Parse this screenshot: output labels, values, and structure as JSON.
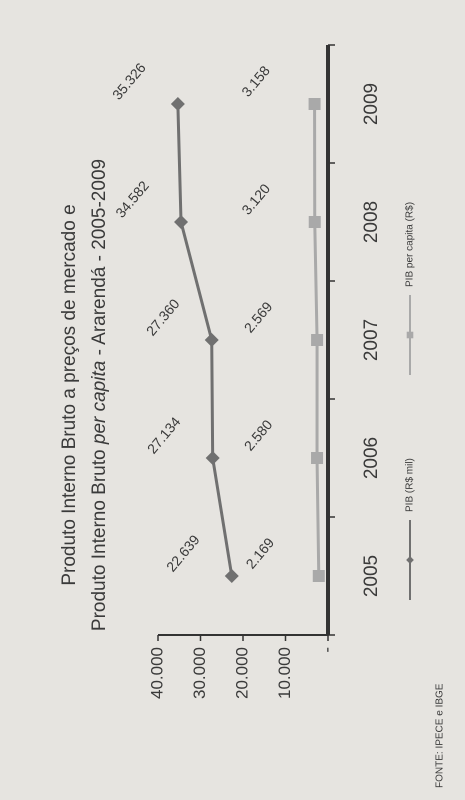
{
  "chart_data": {
    "type": "line",
    "title": "Produto Interno Bruto a preços de mercado e",
    "subtitle_parts": [
      "Produto Interno Bruto ",
      "per capita",
      " - Ararendá - 2005-2009"
    ],
    "source": "FONTE: IPECE e IBGE",
    "categories": [
      "2005",
      "2006",
      "2007",
      "2008",
      "2009"
    ],
    "series": [
      {
        "name": "PIB (R$ mil)",
        "color": "#707070",
        "marker": "diamond",
        "values": [
          22639,
          27134,
          27360,
          34582,
          35326
        ],
        "value_labels": [
          "22.639",
          "27.134",
          "27.360",
          "34.582",
          "35.326"
        ]
      },
      {
        "name": "PIB per capita (R$)",
        "color": "#a9a9a9",
        "marker": "square",
        "values": [
          2169,
          2580,
          2569,
          3120,
          3158
        ],
        "value_labels": [
          "2.169",
          "2.580",
          "2.569",
          "3.120",
          "3.158"
        ]
      }
    ],
    "ylim": [
      0,
      40000
    ],
    "yticks": [
      {
        "value": 0,
        "label": "-"
      },
      {
        "value": 10000,
        "label": "10.000"
      },
      {
        "value": 20000,
        "label": "20.000"
      },
      {
        "value": 30000,
        "label": "30.000"
      },
      {
        "value": 40000,
        "label": "40.000"
      }
    ],
    "legend": "bottom"
  }
}
